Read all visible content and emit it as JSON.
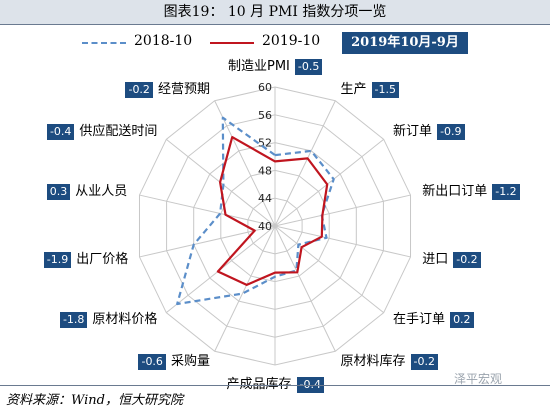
{
  "title": "图表19： 10 月 PMI 指数分项一览",
  "period_badge": "2019年10月-9月",
  "source": "资料来源：Wind，恒大研究院",
  "watermark": "泽平宏观",
  "colors": {
    "series_2018": "#5b8ec9",
    "series_2019": "#c0151f",
    "badge": "#1d4c80",
    "grid": "#c8c8c8"
  },
  "chart_data": {
    "type": "radar",
    "rlim": [
      40,
      60
    ],
    "ticks": [
      "60",
      "56",
      "52",
      "48",
      "44",
      "40"
    ],
    "tick_values": [
      60,
      56,
      52,
      48,
      44,
      40
    ],
    "categories": [
      "制造业PMI",
      "生产",
      "新订单",
      "新出口订单",
      "进口",
      "在手订单",
      "原材料库存",
      "产成品库存",
      "采购量",
      "原材料价格",
      "出厂价格",
      "从业人员",
      "供应配送时间",
      "经营预期"
    ],
    "diffs": [
      "-0.5",
      "-1.5",
      "-0.9",
      "-1.2",
      "-0.2",
      "0.2",
      "-0.2",
      "-0.4",
      "-0.6",
      "-1.8",
      "-1.9",
      "0.3",
      "-0.4",
      "-0.2"
    ],
    "series": [
      {
        "name": "2018-10",
        "values": [
          50.2,
          52.0,
          50.8,
          46.9,
          47.6,
          44.3,
          47.1,
          47.3,
          50.8,
          58.0,
          52.0,
          48.1,
          49.5,
          57.3
        ]
      },
      {
        "name": "2019-10",
        "values": [
          49.3,
          50.8,
          49.6,
          47.0,
          46.9,
          44.9,
          47.4,
          46.7,
          49.4,
          50.5,
          43.0,
          47.3,
          50.1,
          54.2
        ]
      }
    ]
  }
}
